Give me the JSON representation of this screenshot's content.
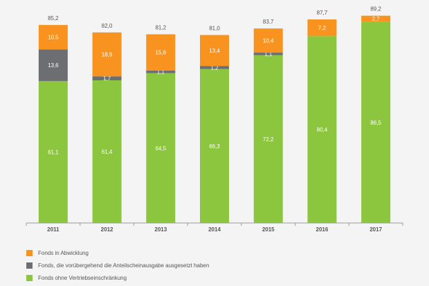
{
  "colors": {
    "green": "#8cc63f",
    "gray": "#6d6e71",
    "orange": "#f7931e",
    "axis": "#9a9a9a",
    "label_inside": "#ffffff",
    "total_label": "#555555"
  },
  "chart_data": {
    "type": "bar",
    "stacked": true,
    "categories": [
      "2011",
      "2012",
      "2013",
      "2014",
      "2015",
      "2016",
      "2017"
    ],
    "series": [
      {
        "name": "Fonds ohne Vertriebseinschränkung",
        "color_key": "green",
        "values": [
          61.1,
          61.4,
          64.5,
          66.3,
          72.2,
          80.4,
          86.5
        ],
        "labels": [
          "61,1",
          "61,4",
          "64,5",
          "66,3",
          "72,2",
          "80,4",
          "86,5"
        ]
      },
      {
        "name": "Fonds, die vorübergehend die Anteilscheinausgabe ausgesetzt haben",
        "color_key": "gray",
        "values": [
          13.6,
          1.7,
          1.1,
          1.2,
          1.1,
          0,
          0
        ],
        "labels": [
          "13,6",
          "1,7",
          "1,1",
          "1,2",
          "1,1",
          "",
          ""
        ]
      },
      {
        "name": "Fonds in Abwicklung",
        "color_key": "orange",
        "values": [
          10.5,
          18.9,
          15.6,
          13.4,
          10.4,
          7.2,
          2.7
        ],
        "labels": [
          "10,5",
          "18,9",
          "15,6",
          "13,4",
          "10,4",
          "7,2",
          "2,7"
        ]
      }
    ],
    "totals": [
      "85,2",
      "82,0",
      "81,2",
      "81,0",
      "83,7",
      "87,7",
      "89,2"
    ],
    "ylim": [
      0,
      90
    ],
    "grid": false,
    "legend_position": "bottom-left",
    "legend_order": [
      2,
      1,
      0
    ]
  }
}
